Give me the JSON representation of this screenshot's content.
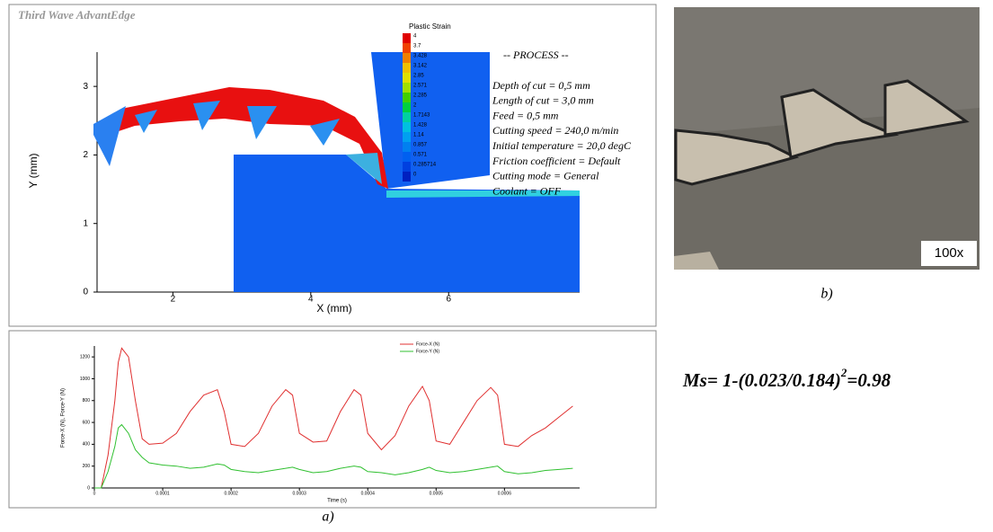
{
  "simulation": {
    "brand": "Third Wave AdvantEdge",
    "x_label": "X (mm)",
    "y_label": "Y (mm)",
    "xlim": [
      0.9,
      7.9
    ],
    "ylim": [
      0,
      3.5
    ],
    "xticks": [
      2,
      4,
      6
    ],
    "yticks": [
      0,
      1,
      2,
      3
    ],
    "legend_title": "Plastic Strain",
    "legend_labels": [
      "4",
      "3.7",
      "3.428",
      "3.142",
      "2.85",
      "2.571",
      "2.285",
      "2",
      "1.7143",
      "1.428",
      "1.14",
      "0.857",
      "0.571",
      "0.285714",
      "0"
    ],
    "process_title": "-- PROCESS --",
    "process_lines": [
      "Depth of cut = 0,5 mm",
      "Length of cut = 3,0 mm",
      "Feed = 0,5 mm",
      "Cutting speed = 240,0 m/min",
      "Initial temperature = 20,0 degC",
      "Friction coefficient = Default",
      "Cutting mode = General",
      "Coolant = OFF"
    ]
  },
  "chart_data": {
    "type": "line",
    "x_label": "Time (s)",
    "y_label": "Force-X (N), Force-Y (N)",
    "x": [
      0,
      1e-05,
      2e-05,
      3e-05,
      3.5e-05,
      4e-05,
      5e-05,
      6e-05,
      7e-05,
      8e-05,
      0.0001,
      0.00012,
      0.00014,
      0.00016,
      0.00018,
      0.00019,
      0.0002,
      0.00022,
      0.00024,
      0.00026,
      0.00028,
      0.00029,
      0.0003,
      0.00032,
      0.00034,
      0.00036,
      0.00038,
      0.00039,
      0.0004,
      0.00042,
      0.00044,
      0.00046,
      0.00048,
      0.00049,
      0.0005,
      0.00052,
      0.00054,
      0.00056,
      0.00058,
      0.00059,
      0.0006,
      0.00062,
      0.00064,
      0.00066,
      0.00068,
      0.0007
    ],
    "series": [
      {
        "name": "Force-X (N)",
        "color": "#e03030",
        "values": [
          0,
          0,
          300,
          800,
          1150,
          1280,
          1200,
          800,
          450,
          400,
          410,
          500,
          700,
          850,
          900,
          700,
          400,
          380,
          500,
          750,
          900,
          850,
          500,
          420,
          430,
          700,
          900,
          850,
          500,
          350,
          480,
          750,
          930,
          800,
          430,
          400,
          600,
          800,
          920,
          850,
          400,
          380,
          480,
          550,
          650,
          750
        ]
      },
      {
        "name": "Force-Y (N)",
        "color": "#30c030",
        "values": [
          0,
          0,
          150,
          380,
          550,
          580,
          500,
          350,
          280,
          230,
          210,
          200,
          180,
          190,
          220,
          210,
          170,
          150,
          140,
          160,
          180,
          190,
          170,
          140,
          150,
          180,
          200,
          190,
          150,
          140,
          120,
          140,
          170,
          190,
          160,
          140,
          150,
          170,
          190,
          200,
          150,
          130,
          140,
          160,
          170,
          180
        ]
      }
    ],
    "xlim": [
      0,
      0.00071
    ],
    "ylim": [
      0,
      1300
    ],
    "xticks": [
      0,
      0.0001,
      0.0002,
      0.0003,
      0.0004,
      0.0005,
      0.0006
    ],
    "yticks": [
      0,
      200,
      400,
      600,
      800,
      1000,
      1200
    ]
  },
  "captions": {
    "a": "a)",
    "b": "b)",
    "magnification": "100x"
  },
  "formula": {
    "base": "Ms= 1-(0.023/0.184)",
    "exponent": "2",
    "result": "=0.98"
  }
}
